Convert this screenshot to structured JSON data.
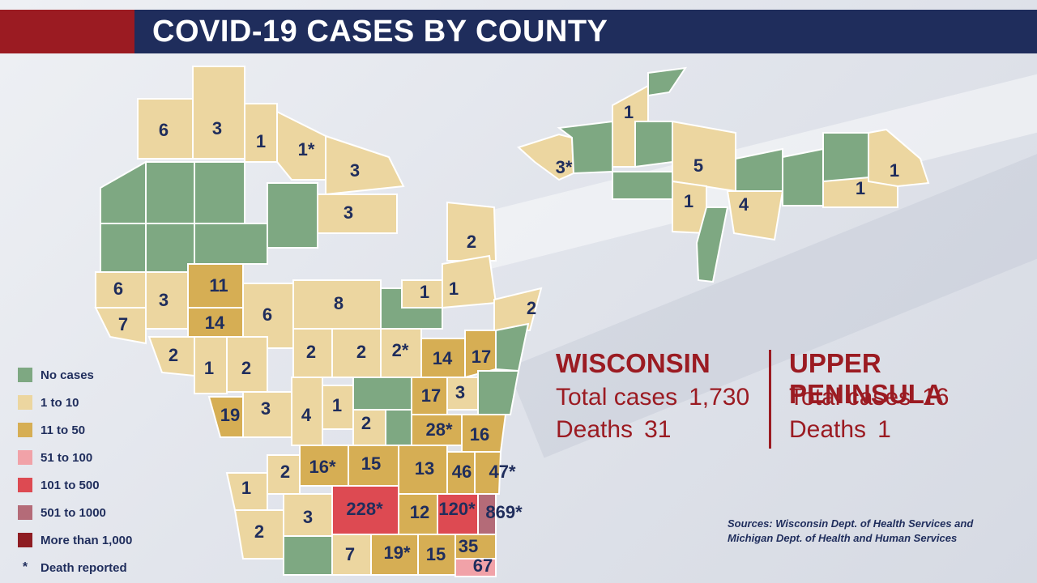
{
  "title": "COVID-19 CASES BY COUNTY",
  "colors": {
    "none": "#7ea882",
    "c1_10": "#ecd6a0",
    "c11_50": "#d6ae54",
    "c51_100": "#f1a2a8",
    "c101_500": "#dd4a52",
    "c501_1000": "#b46b78",
    "c1000_plus": "#8e1c22",
    "header_red": "#9b1b22",
    "header_blue": "#1f2d5c",
    "accent_red": "#9b1b22"
  },
  "legend": [
    {
      "label": "No cases",
      "color": "#7ea882"
    },
    {
      "label": "1 to 10",
      "color": "#ecd6a0"
    },
    {
      "label": "11 to 50",
      "color": "#d6ae54"
    },
    {
      "label": "51 to 100",
      "color": "#f1a2a8"
    },
    {
      "label": "101 to 500",
      "color": "#dd4a52"
    },
    {
      "label": "501 to 1000",
      "color": "#b46b78"
    },
    {
      "label": "More than 1,000",
      "color": "#8e1c22"
    }
  ],
  "legend_death": {
    "symbol": "*",
    "label": "Death reported"
  },
  "wisconsin": {
    "title": "WISCONSIN",
    "total_label": "Total cases",
    "total_value": "1,730",
    "deaths_label": "Deaths",
    "deaths_value": "31"
  },
  "upper_peninsula": {
    "title": "UPPER PENINSULA",
    "total_label": "Total cases",
    "total_value": "16",
    "deaths_label": "Deaths",
    "deaths_value": "1"
  },
  "sources_line1": "Sources: Wisconsin Dept. of Health Services and",
  "sources_line2": "Michigan Dept. of Health and Human Services",
  "wi_counties": [
    {
      "label": "6",
      "cat": "c1_10"
    },
    {
      "label": "3",
      "cat": "c1_10"
    },
    {
      "label": "1",
      "cat": "c1_10"
    },
    {
      "label": "1*",
      "cat": "c1_10"
    },
    {
      "label": "3",
      "cat": "c1_10"
    },
    {
      "label": "3",
      "cat": "c1_10"
    },
    {
      "label": "2",
      "cat": "c1_10"
    },
    {
      "label": "",
      "cat": "none"
    },
    {
      "label": "",
      "cat": "none"
    },
    {
      "label": "",
      "cat": "none"
    },
    {
      "label": "",
      "cat": "none"
    },
    {
      "label": "",
      "cat": "none"
    },
    {
      "label": "",
      "cat": "none"
    },
    {
      "label": "",
      "cat": "none"
    },
    {
      "label": "6",
      "cat": "c1_10"
    },
    {
      "label": "3",
      "cat": "c1_10"
    },
    {
      "label": "11",
      "cat": "c11_50"
    },
    {
      "label": "1",
      "cat": "c1_10"
    },
    {
      "label": "1",
      "cat": "c1_10"
    },
    {
      "label": "2",
      "cat": "c1_10"
    },
    {
      "label": "7",
      "cat": "c1_10"
    },
    {
      "label": "14",
      "cat": "c11_50"
    },
    {
      "label": "6",
      "cat": "c1_10"
    },
    {
      "label": "8",
      "cat": "c1_10"
    },
    {
      "label": "",
      "cat": "none"
    },
    {
      "label": "2",
      "cat": "c1_10"
    },
    {
      "label": "1",
      "cat": "c1_10"
    },
    {
      "label": "2",
      "cat": "c1_10"
    },
    {
      "label": "2",
      "cat": "c1_10"
    },
    {
      "label": "2",
      "cat": "c1_10"
    },
    {
      "label": "2*",
      "cat": "c1_10"
    },
    {
      "label": "14",
      "cat": "c11_50"
    },
    {
      "label": "17",
      "cat": "c11_50"
    },
    {
      "label": "",
      "cat": "none"
    },
    {
      "label": "19",
      "cat": "c11_50"
    },
    {
      "label": "3",
      "cat": "c1_10"
    },
    {
      "label": "4",
      "cat": "c1_10"
    },
    {
      "label": "1",
      "cat": "c1_10"
    },
    {
      "label": "2",
      "cat": "c1_10"
    },
    {
      "label": "",
      "cat": "none"
    },
    {
      "label": "17",
      "cat": "c11_50"
    },
    {
      "label": "3",
      "cat": "c1_10"
    },
    {
      "label": "",
      "cat": "none"
    },
    {
      "label": "28*",
      "cat": "c11_50"
    },
    {
      "label": "16",
      "cat": "c11_50"
    },
    {
      "label": "",
      "cat": "none"
    },
    {
      "label": "1",
      "cat": "c1_10"
    },
    {
      "label": "2",
      "cat": "c1_10"
    },
    {
      "label": "16*",
      "cat": "c11_50"
    },
    {
      "label": "15",
      "cat": "c11_50"
    },
    {
      "label": "13",
      "cat": "c11_50"
    },
    {
      "label": "46",
      "cat": "c11_50"
    },
    {
      "label": "47*",
      "cat": "c11_50"
    },
    {
      "label": "2",
      "cat": "c1_10"
    },
    {
      "label": "3",
      "cat": "c1_10"
    },
    {
      "label": "228*",
      "cat": "c101_500"
    },
    {
      "label": "12",
      "cat": "c11_50"
    },
    {
      "label": "120*",
      "cat": "c101_500"
    },
    {
      "label": "869*",
      "cat": "c501_1000"
    },
    {
      "label": "",
      "cat": "none"
    },
    {
      "label": "7",
      "cat": "c1_10"
    },
    {
      "label": "19*",
      "cat": "c11_50"
    },
    {
      "label": "15",
      "cat": "c11_50"
    },
    {
      "label": "35",
      "cat": "c11_50"
    },
    {
      "label": "67",
      "cat": "c51_100"
    }
  ],
  "up_counties": [
    {
      "label": "3*",
      "cat": "c1_10"
    },
    {
      "label": "",
      "cat": "none"
    },
    {
      "label": "1",
      "cat": "c1_10"
    },
    {
      "label": "",
      "cat": "none"
    },
    {
      "label": "",
      "cat": "none"
    },
    {
      "label": "5",
      "cat": "c1_10"
    },
    {
      "label": "1",
      "cat": "c1_10"
    },
    {
      "label": "",
      "cat": "none"
    },
    {
      "label": "4",
      "cat": "c1_10"
    },
    {
      "label": "",
      "cat": "none"
    },
    {
      "label": "",
      "cat": "none"
    },
    {
      "label": "",
      "cat": "none"
    },
    {
      "label": "1",
      "cat": "c1_10"
    },
    {
      "label": "1",
      "cat": "c1_10"
    },
    {
      "label": "",
      "cat": "none"
    }
  ]
}
